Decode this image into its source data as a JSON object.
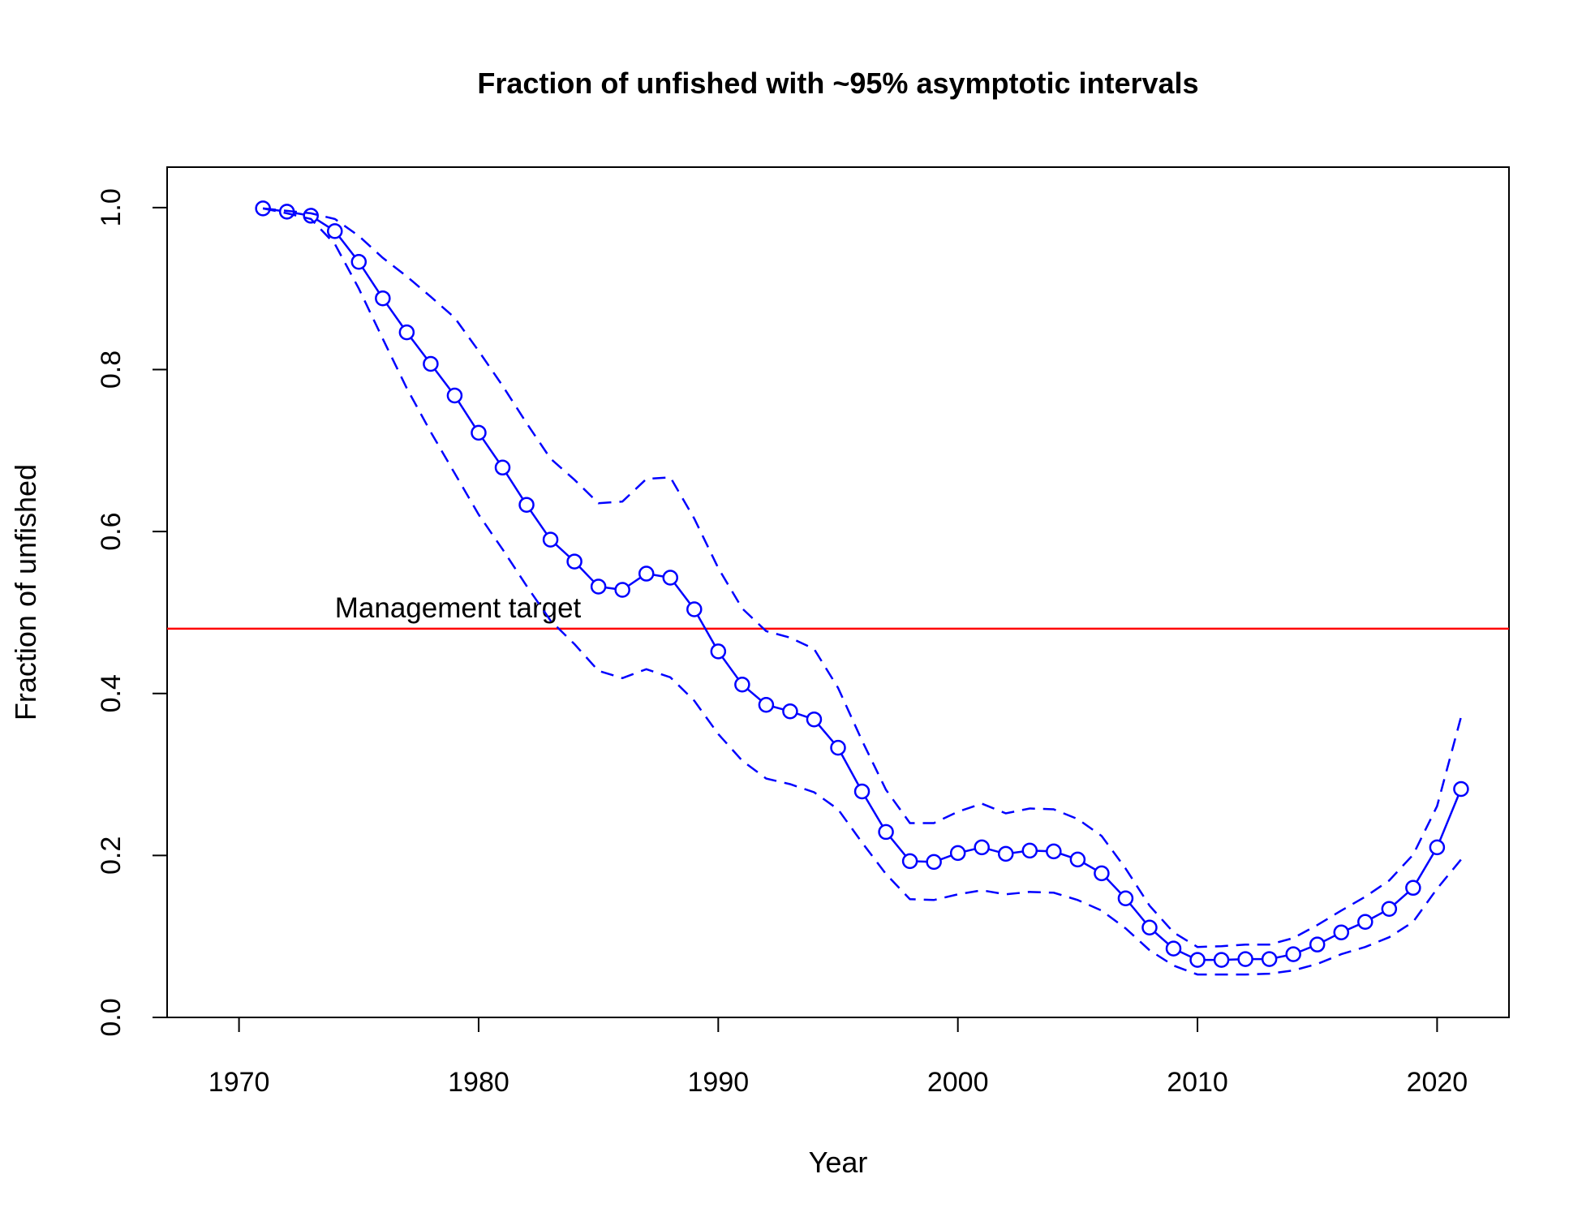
{
  "chart_data": {
    "type": "line",
    "title": "Fraction of unfished with ~95% asymptotic intervals",
    "xlabel": "Year",
    "ylabel": "Fraction of unfished",
    "xlim": [
      1967,
      2023
    ],
    "ylim": [
      0.0,
      1.05
    ],
    "x_ticks": [
      "1970",
      "1980",
      "1990",
      "2000",
      "2010",
      "2020"
    ],
    "y_ticks": [
      "0.0",
      "0.2",
      "0.4",
      "0.6",
      "0.8",
      "1.0"
    ],
    "grid": false,
    "legend": "none",
    "x": [
      1971,
      1972,
      1973,
      1974,
      1975,
      1976,
      1977,
      1978,
      1979,
      1980,
      1981,
      1982,
      1983,
      1984,
      1985,
      1986,
      1987,
      1988,
      1989,
      1990,
      1991,
      1992,
      1993,
      1994,
      1995,
      1996,
      1997,
      1998,
      1999,
      2000,
      2001,
      2002,
      2003,
      2004,
      2005,
      2006,
      2007,
      2008,
      2009,
      2010,
      2011,
      2012,
      2013,
      2014,
      2015,
      2016,
      2017,
      2018,
      2019,
      2020,
      2021
    ],
    "series": [
      {
        "role": "estimate",
        "values": [
          0.999,
          0.995,
          0.99,
          0.971,
          0.933,
          0.888,
          0.846,
          0.807,
          0.768,
          0.722,
          0.679,
          0.633,
          0.59,
          0.563,
          0.532,
          0.528,
          0.548,
          0.543,
          0.504,
          0.452,
          0.411,
          0.386,
          0.378,
          0.368,
          0.333,
          0.279,
          0.229,
          0.193,
          0.192,
          0.203,
          0.21,
          0.202,
          0.206,
          0.205,
          0.195,
          0.178,
          0.147,
          0.111,
          0.085,
          0.071,
          0.071,
          0.072,
          0.072,
          0.078,
          0.09,
          0.105,
          0.118,
          0.134,
          0.16,
          0.21,
          0.282
        ],
        "color": "#0000ff",
        "style": "solid-with-circles"
      },
      {
        "role": "upper",
        "values": [
          0.999,
          0.996,
          0.993,
          0.986,
          0.965,
          0.938,
          0.915,
          0.89,
          0.864,
          0.823,
          0.78,
          0.734,
          0.69,
          0.664,
          0.635,
          0.637,
          0.665,
          0.667,
          0.616,
          0.555,
          0.505,
          0.477,
          0.469,
          0.455,
          0.407,
          0.342,
          0.281,
          0.24,
          0.24,
          0.254,
          0.264,
          0.252,
          0.258,
          0.257,
          0.245,
          0.224,
          0.184,
          0.138,
          0.105,
          0.087,
          0.088,
          0.09,
          0.09,
          0.098,
          0.114,
          0.132,
          0.149,
          0.169,
          0.201,
          0.261,
          0.371
        ],
        "color": "#0000ff",
        "style": "dashed"
      },
      {
        "role": "lower",
        "values": [
          0.999,
          0.993,
          0.986,
          0.955,
          0.9,
          0.838,
          0.777,
          0.723,
          0.672,
          0.621,
          0.578,
          0.533,
          0.49,
          0.461,
          0.428,
          0.419,
          0.43,
          0.42,
          0.391,
          0.35,
          0.317,
          0.295,
          0.288,
          0.278,
          0.257,
          0.216,
          0.177,
          0.146,
          0.145,
          0.152,
          0.157,
          0.152,
          0.155,
          0.154,
          0.145,
          0.132,
          0.11,
          0.083,
          0.064,
          0.053,
          0.053,
          0.053,
          0.054,
          0.058,
          0.066,
          0.078,
          0.087,
          0.099,
          0.118,
          0.159,
          0.195
        ],
        "color": "#0000ff",
        "style": "dashed"
      }
    ],
    "reference_line": {
      "y": 0.48,
      "label": "Management target",
      "color": "#ff0000",
      "label_x": 1974
    }
  }
}
